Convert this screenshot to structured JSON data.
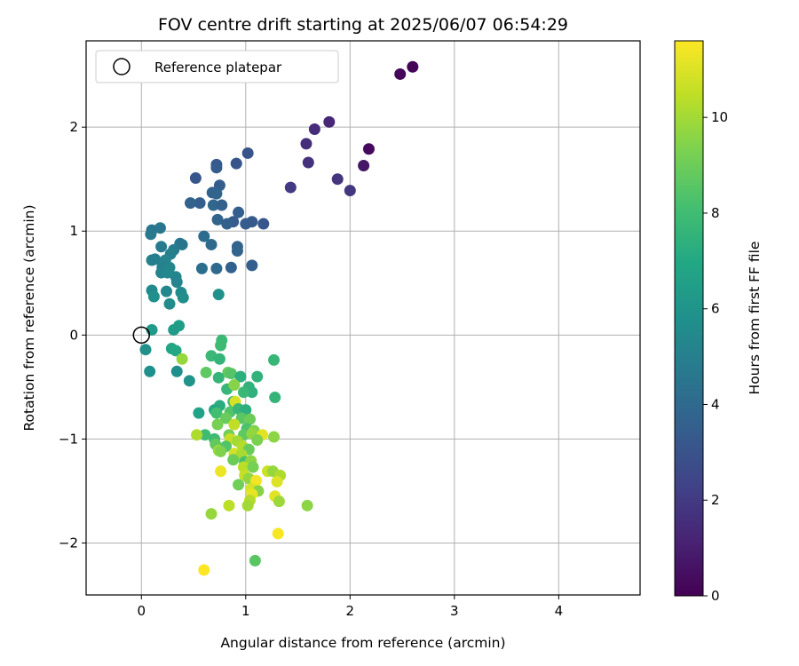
{
  "chart_data": {
    "type": "scatter",
    "title": "FOV centre drift starting at 2025/06/07 06:54:29",
    "xlabel": "Angular distance from reference (arcmin)",
    "ylabel": "Rotation from reference (arcmin)",
    "colorbar_label": "Hours from first FF file",
    "colormap": "viridis",
    "xlim": [
      -0.53,
      4.78
    ],
    "ylim": [
      -2.5,
      2.83
    ],
    "clim": [
      0,
      11.6
    ],
    "xticks": [
      "0",
      "1",
      "2",
      "3",
      "4"
    ],
    "yticks": [
      "−2",
      "−1",
      "0",
      "1",
      "2"
    ],
    "cticks": [
      "0",
      "2",
      "4",
      "6",
      "8",
      "10"
    ],
    "grid": true,
    "legend": {
      "position": "top-left",
      "label": "Reference platepar"
    },
    "reference_point": {
      "x": 0,
      "y": 0
    },
    "points": [
      {
        "x": 2.6,
        "y": 2.58,
        "t": 0.1
      },
      {
        "x": 2.48,
        "y": 2.51,
        "t": 0.2
      },
      {
        "x": 2.18,
        "y": 1.79,
        "t": 0.3
      },
      {
        "x": 2.13,
        "y": 1.63,
        "t": 0.7
      },
      {
        "x": 1.8,
        "y": 2.05,
        "t": 1.3
      },
      {
        "x": 1.66,
        "y": 1.98,
        "t": 1.5
      },
      {
        "x": 1.58,
        "y": 1.84,
        "t": 1.6
      },
      {
        "x": 1.6,
        "y": 1.66,
        "t": 1.7
      },
      {
        "x": 1.43,
        "y": 1.42,
        "t": 2.0
      },
      {
        "x": 1.88,
        "y": 1.5,
        "t": 1.8
      },
      {
        "x": 2.0,
        "y": 1.39,
        "t": 1.9
      },
      {
        "x": 1.02,
        "y": 1.75,
        "t": 3.0
      },
      {
        "x": 0.91,
        "y": 1.65,
        "t": 3.1
      },
      {
        "x": 0.72,
        "y": 1.64,
        "t": 3.3
      },
      {
        "x": 0.72,
        "y": 1.61,
        "t": 3.4
      },
      {
        "x": 0.52,
        "y": 1.51,
        "t": 3.2
      },
      {
        "x": 0.75,
        "y": 1.44,
        "t": 3.5
      },
      {
        "x": 0.68,
        "y": 1.37,
        "t": 3.6
      },
      {
        "x": 0.72,
        "y": 1.36,
        "t": 3.8
      },
      {
        "x": 0.56,
        "y": 1.27,
        "t": 3.5
      },
      {
        "x": 0.47,
        "y": 1.27,
        "t": 3.7
      },
      {
        "x": 0.69,
        "y": 1.25,
        "t": 3.9
      },
      {
        "x": 0.77,
        "y": 1.25,
        "t": 3.6
      },
      {
        "x": 0.93,
        "y": 1.18,
        "t": 3.5
      },
      {
        "x": 0.73,
        "y": 1.11,
        "t": 3.8
      },
      {
        "x": 0.88,
        "y": 1.09,
        "t": 3.4
      },
      {
        "x": 0.82,
        "y": 1.07,
        "t": 3.6
      },
      {
        "x": 1.0,
        "y": 1.07,
        "t": 3.4
      },
      {
        "x": 1.06,
        "y": 1.09,
        "t": 3.3
      },
      {
        "x": 1.17,
        "y": 1.07,
        "t": 3.2
      },
      {
        "x": 0.92,
        "y": 0.85,
        "t": 3.7
      },
      {
        "x": 0.92,
        "y": 0.81,
        "t": 3.8
      },
      {
        "x": 0.86,
        "y": 0.65,
        "t": 3.6
      },
      {
        "x": 1.06,
        "y": 0.67,
        "t": 3.5
      },
      {
        "x": 0.72,
        "y": 0.64,
        "t": 4.0
      },
      {
        "x": 0.6,
        "y": 0.95,
        "t": 4.1
      },
      {
        "x": 0.67,
        "y": 0.87,
        "t": 4.0
      },
      {
        "x": 0.58,
        "y": 0.64,
        "t": 4.2
      },
      {
        "x": 0.1,
        "y": 1.01,
        "t": 4.5
      },
      {
        "x": 0.18,
        "y": 1.03,
        "t": 4.6
      },
      {
        "x": 0.09,
        "y": 0.97,
        "t": 4.7
      },
      {
        "x": 0.19,
        "y": 0.85,
        "t": 4.8
      },
      {
        "x": 0.37,
        "y": 0.88,
        "t": 4.6
      },
      {
        "x": 0.39,
        "y": 0.87,
        "t": 4.5
      },
      {
        "x": 0.31,
        "y": 0.82,
        "t": 4.9
      },
      {
        "x": 0.28,
        "y": 0.78,
        "t": 5.0
      },
      {
        "x": 0.1,
        "y": 0.72,
        "t": 5.1
      },
      {
        "x": 0.13,
        "y": 0.73,
        "t": 5.0
      },
      {
        "x": 0.23,
        "y": 0.72,
        "t": 5.2
      },
      {
        "x": 0.2,
        "y": 0.65,
        "t": 5.1
      },
      {
        "x": 0.27,
        "y": 0.65,
        "t": 5.3
      },
      {
        "x": 0.19,
        "y": 0.6,
        "t": 5.2
      },
      {
        "x": 0.25,
        "y": 0.6,
        "t": 5.4
      },
      {
        "x": 0.33,
        "y": 0.56,
        "t": 5.3
      },
      {
        "x": 0.34,
        "y": 0.51,
        "t": 5.2
      },
      {
        "x": 0.1,
        "y": 0.43,
        "t": 5.5
      },
      {
        "x": 0.24,
        "y": 0.42,
        "t": 5.4
      },
      {
        "x": 0.38,
        "y": 0.41,
        "t": 5.6
      },
      {
        "x": 0.4,
        "y": 0.36,
        "t": 5.7
      },
      {
        "x": 0.12,
        "y": 0.37,
        "t": 5.8
      },
      {
        "x": 0.27,
        "y": 0.3,
        "t": 5.6
      },
      {
        "x": 0.74,
        "y": 0.39,
        "t": 5.9
      },
      {
        "x": 0.36,
        "y": 0.09,
        "t": 6.5
      },
      {
        "x": 0.31,
        "y": 0.05,
        "t": 6.4
      },
      {
        "x": 0.1,
        "y": 0.05,
        "t": 6.3
      },
      {
        "x": 0.04,
        "y": -0.14,
        "t": 5.9
      },
      {
        "x": 0.08,
        "y": -0.35,
        "t": 5.8
      },
      {
        "x": 0.34,
        "y": -0.35,
        "t": 5.7
      },
      {
        "x": 0.29,
        "y": -0.13,
        "t": 6.8
      },
      {
        "x": 0.33,
        "y": -0.15,
        "t": 7.0
      },
      {
        "x": 0.46,
        "y": -0.44,
        "t": 6.0
      },
      {
        "x": 0.55,
        "y": -0.75,
        "t": 6.7
      },
      {
        "x": 0.77,
        "y": -0.05,
        "t": 7.8
      },
      {
        "x": 0.76,
        "y": -0.1,
        "t": 7.9
      },
      {
        "x": 0.67,
        "y": -0.2,
        "t": 7.8
      },
      {
        "x": 0.75,
        "y": -0.23,
        "t": 7.6
      },
      {
        "x": 1.27,
        "y": -0.24,
        "t": 7.7
      },
      {
        "x": 0.39,
        "y": -0.23,
        "t": 9.8
      },
      {
        "x": 0.62,
        "y": -0.36,
        "t": 8.7
      },
      {
        "x": 0.83,
        "y": -0.36,
        "t": 8.8
      },
      {
        "x": 0.86,
        "y": -0.37,
        "t": 8.5
      },
      {
        "x": 0.74,
        "y": -0.41,
        "t": 7.6
      },
      {
        "x": 0.95,
        "y": -0.4,
        "t": 7.3
      },
      {
        "x": 1.11,
        "y": -0.4,
        "t": 7.5
      },
      {
        "x": 0.82,
        "y": -0.52,
        "t": 7.7
      },
      {
        "x": 0.89,
        "y": -0.48,
        "t": 9.5
      },
      {
        "x": 1.03,
        "y": -0.5,
        "t": 7.5
      },
      {
        "x": 1.06,
        "y": -0.55,
        "t": 7.4
      },
      {
        "x": 0.98,
        "y": -0.55,
        "t": 7.8
      },
      {
        "x": 1.28,
        "y": -0.6,
        "t": 7.6
      },
      {
        "x": 0.88,
        "y": -0.64,
        "t": 8.0
      },
      {
        "x": 0.9,
        "y": -0.64,
        "t": 10.9
      },
      {
        "x": 0.75,
        "y": -0.68,
        "t": 7.2
      },
      {
        "x": 0.7,
        "y": -0.72,
        "t": 7.0
      },
      {
        "x": 0.85,
        "y": -0.74,
        "t": 8.4
      },
      {
        "x": 0.93,
        "y": -0.71,
        "t": 7.7
      },
      {
        "x": 1.0,
        "y": -0.72,
        "t": 7.3
      },
      {
        "x": 0.72,
        "y": -0.75,
        "t": 8.1
      },
      {
        "x": 0.81,
        "y": -0.8,
        "t": 8.9
      },
      {
        "x": 0.96,
        "y": -0.8,
        "t": 8.6
      },
      {
        "x": 1.04,
        "y": -0.81,
        "t": 9.0
      },
      {
        "x": 0.73,
        "y": -0.86,
        "t": 9.2
      },
      {
        "x": 0.89,
        "y": -0.86,
        "t": 10.5
      },
      {
        "x": 1.01,
        "y": -0.9,
        "t": 8.3
      },
      {
        "x": 1.08,
        "y": -0.92,
        "t": 9.4
      },
      {
        "x": 0.61,
        "y": -0.96,
        "t": 8.0
      },
      {
        "x": 0.53,
        "y": -0.96,
        "t": 10.2
      },
      {
        "x": 0.84,
        "y": -0.96,
        "t": 9.1
      },
      {
        "x": 0.98,
        "y": -0.96,
        "t": 8.7
      },
      {
        "x": 1.06,
        "y": -0.95,
        "t": 9.7
      },
      {
        "x": 1.16,
        "y": -0.96,
        "t": 11.1
      },
      {
        "x": 1.27,
        "y": -0.98,
        "t": 9.6
      },
      {
        "x": 0.7,
        "y": -1.0,
        "t": 7.9
      },
      {
        "x": 0.85,
        "y": -1.0,
        "t": 10.6
      },
      {
        "x": 0.92,
        "y": -1.02,
        "t": 10.0
      },
      {
        "x": 1.11,
        "y": -1.01,
        "t": 9.3
      },
      {
        "x": 0.71,
        "y": -1.05,
        "t": 8.8
      },
      {
        "x": 0.81,
        "y": -1.07,
        "t": 8.4
      },
      {
        "x": 0.97,
        "y": -1.07,
        "t": 10.3
      },
      {
        "x": 1.03,
        "y": -1.1,
        "t": 8.9
      },
      {
        "x": 0.74,
        "y": -1.11,
        "t": 9.9
      },
      {
        "x": 0.76,
        "y": -1.12,
        "t": 9.4
      },
      {
        "x": 0.89,
        "y": -1.14,
        "t": 10.8
      },
      {
        "x": 0.96,
        "y": -1.15,
        "t": 10.1
      },
      {
        "x": 0.88,
        "y": -1.2,
        "t": 9.0
      },
      {
        "x": 0.99,
        "y": -1.22,
        "t": 8.2
      },
      {
        "x": 1.05,
        "y": -1.21,
        "t": 9.6
      },
      {
        "x": 0.98,
        "y": -1.27,
        "t": 10.4
      },
      {
        "x": 1.07,
        "y": -1.27,
        "t": 9.2
      },
      {
        "x": 1.21,
        "y": -1.31,
        "t": 10.7
      },
      {
        "x": 1.26,
        "y": -1.31,
        "t": 9.8
      },
      {
        "x": 0.76,
        "y": -1.31,
        "t": 11.3
      },
      {
        "x": 0.99,
        "y": -1.35,
        "t": 10.6
      },
      {
        "x": 1.03,
        "y": -1.38,
        "t": 9.7
      },
      {
        "x": 1.33,
        "y": -1.35,
        "t": 10.2
      },
      {
        "x": 1.3,
        "y": -1.41,
        "t": 11.0
      },
      {
        "x": 1.1,
        "y": -1.4,
        "t": 11.4
      },
      {
        "x": 0.93,
        "y": -1.44,
        "t": 9.1
      },
      {
        "x": 1.05,
        "y": -1.48,
        "t": 10.9
      },
      {
        "x": 1.12,
        "y": -1.5,
        "t": 9.5
      },
      {
        "x": 1.06,
        "y": -1.53,
        "t": 11.2
      },
      {
        "x": 1.28,
        "y": -1.55,
        "t": 11.1
      },
      {
        "x": 1.04,
        "y": -1.59,
        "t": 10.3
      },
      {
        "x": 1.32,
        "y": -1.6,
        "t": 9.9
      },
      {
        "x": 0.84,
        "y": -1.64,
        "t": 10.4
      },
      {
        "x": 1.02,
        "y": -1.64,
        "t": 10.0
      },
      {
        "x": 1.59,
        "y": -1.64,
        "t": 9.6
      },
      {
        "x": 0.67,
        "y": -1.72,
        "t": 9.8
      },
      {
        "x": 1.31,
        "y": -1.91,
        "t": 11.5
      },
      {
        "x": 1.09,
        "y": -2.17,
        "t": 8.6
      },
      {
        "x": 0.6,
        "y": -2.26,
        "t": 11.6
      }
    ]
  }
}
